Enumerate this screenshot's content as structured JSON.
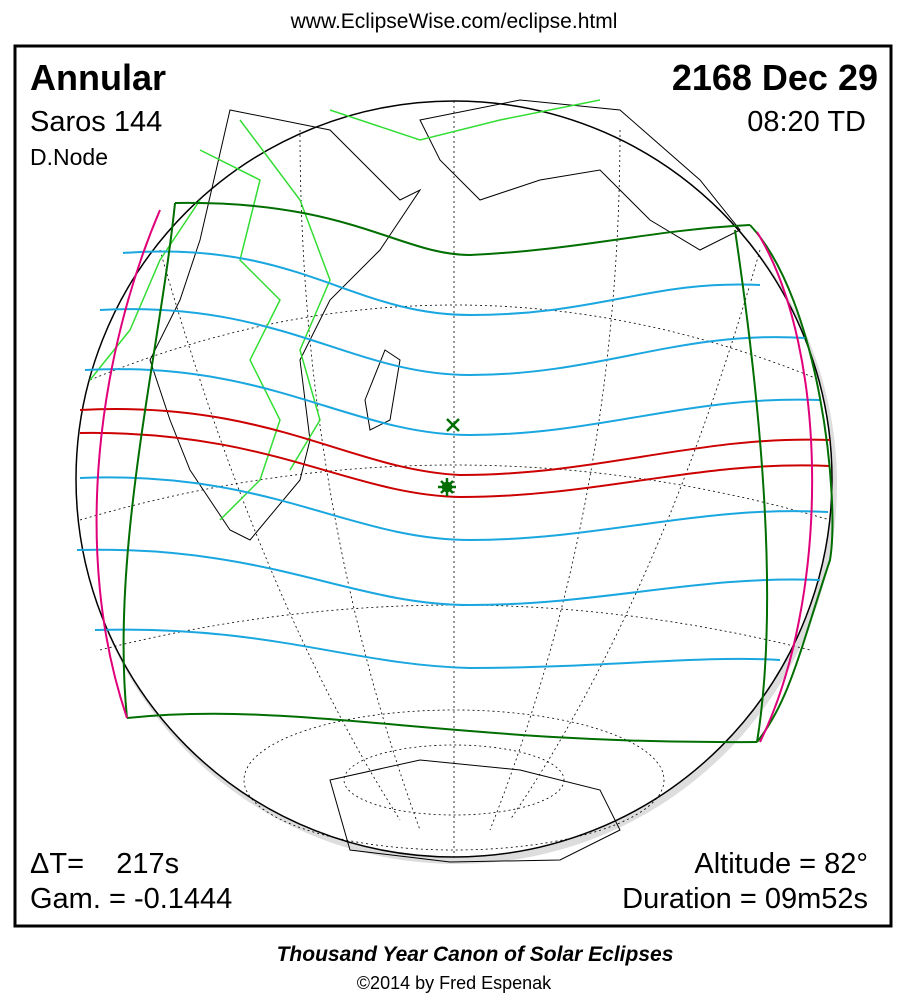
{
  "header": {
    "url": "www.EclipseWise.com/eclipse.html"
  },
  "panel": {
    "eclipse_type": "Annular",
    "saros": "Saros 144",
    "node": "D.Node",
    "date": "2168 Dec 29",
    "time": "08:20 TD",
    "delta_t": "ΔT=    217s",
    "gamma": "Gam. = -0.1444",
    "altitude": "Altitude = 82°",
    "duration": "Duration = 09m52s"
  },
  "footer": {
    "title": "Thousand Year Canon of Solar Eclipses",
    "credit": "©2014 by Fred Espenak"
  }
}
